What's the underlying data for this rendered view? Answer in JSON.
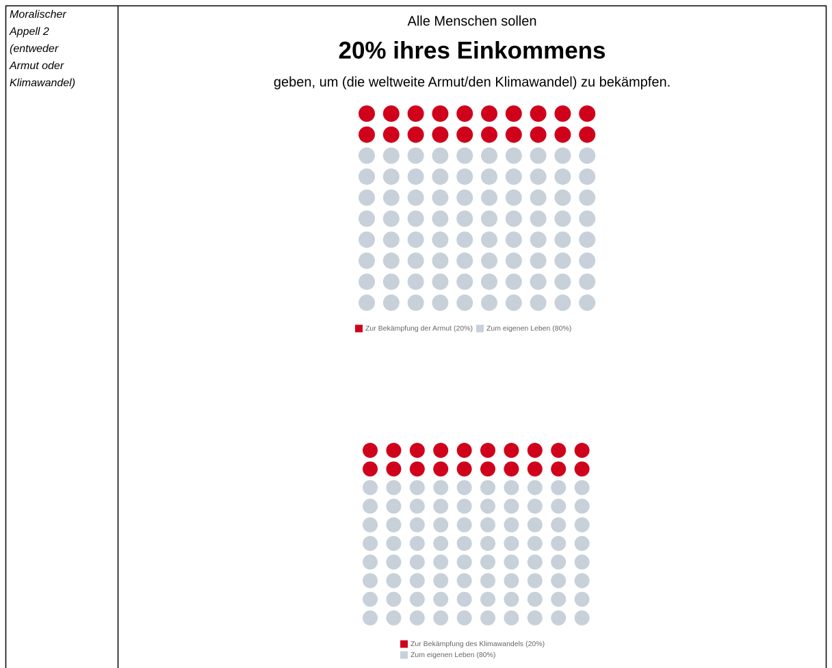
{
  "table": {
    "label_lines": [
      "Moralischer",
      "Appell 2",
      "(entweder",
      "Armut oder",
      "Klimawandel)"
    ],
    "intro": "Alle Menschen sollen",
    "headline": "20% ihres Einkommens",
    "outro": "geben, um (die weltweite Armut/den Klimawandel) zu bekämpfen."
  },
  "chart_data": [
    {
      "type": "waffle",
      "categories": [
        "Zur Bekämpfung der Armut (20%)",
        "Zum eigenen Leben (80%)"
      ],
      "values": [
        20,
        80
      ],
      "colors": [
        "#d0021b",
        "#c8d1d9"
      ]
    },
    {
      "type": "waffle",
      "categories": [
        "Zur Bekämpfung des Klimawandels (20%)",
        "Zum eigenen Leben (80%)"
      ],
      "values": [
        20,
        80
      ],
      "colors": [
        "#d0021b",
        "#c8d1d9"
      ]
    }
  ]
}
